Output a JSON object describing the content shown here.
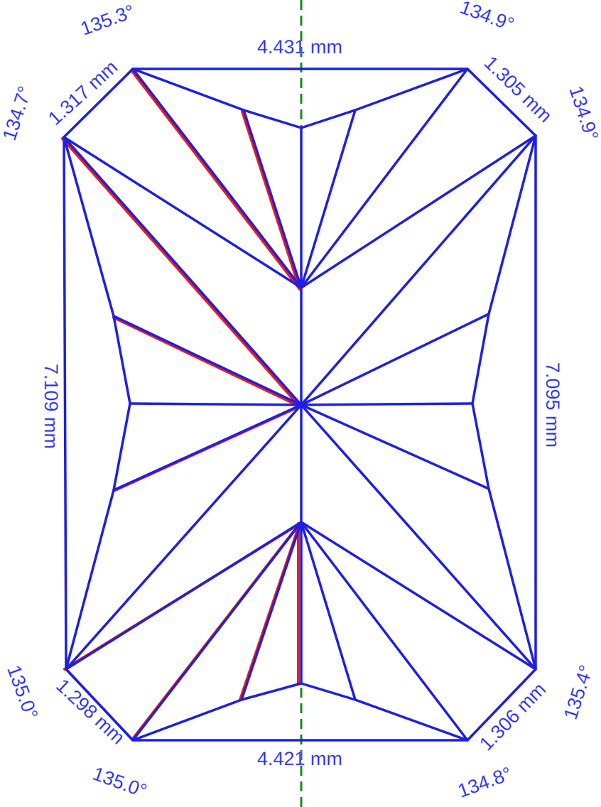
{
  "labels": {
    "top_width": "4.431 mm",
    "bottom_width": "4.421 mm",
    "left_length": "7.109 mm",
    "right_length": "7.095 mm",
    "corner_top_left": "1.317 mm",
    "corner_top_right": "1.305 mm",
    "corner_bottom_left": "1.298 mm",
    "corner_bottom_right": "1.306 mm",
    "angle_top_left_a": "135.3°",
    "angle_top_left_b": "134.7°",
    "angle_top_right_a": "134.9°",
    "angle_top_right_b": "134.9°",
    "angle_bottom_left_a": "135.0°",
    "angle_bottom_left_b": "135.0°",
    "angle_bottom_right_a": "134.8°",
    "angle_bottom_right_b": "135.4°"
  }
}
